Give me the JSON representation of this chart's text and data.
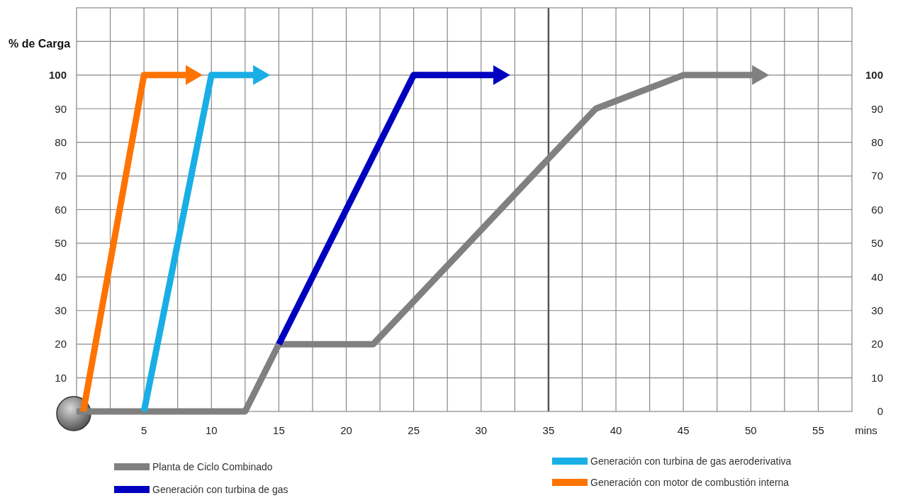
{
  "chart_data": {
    "type": "line",
    "xlabel": "mins",
    "ylabel": "% de Carga",
    "xlim": [
      0,
      57.5
    ],
    "ylim": [
      0,
      120
    ],
    "xticks": [
      {
        "value": 2.5,
        "label": null
      },
      5,
      {
        "value": 7.5,
        "label": null
      },
      10,
      {
        "value": 12.5,
        "label": null
      },
      15,
      {
        "value": 17.5,
        "label": null
      },
      20,
      {
        "value": 22.5,
        "label": null
      },
      25,
      {
        "value": 27.5,
        "label": null
      },
      30,
      {
        "value": 32.5,
        "label": null
      },
      35,
      {
        "value": 37.5,
        "label": null
      },
      40,
      {
        "value": 42.5,
        "label": null
      },
      45,
      {
        "value": 47.5,
        "label": null
      },
      50,
      {
        "value": 52.5,
        "label": null
      },
      55
    ],
    "yticks": [
      10,
      20,
      30,
      40,
      50,
      60,
      70,
      80,
      90,
      100,
      {
        "value": 110,
        "label": null
      }
    ],
    "y2lim": [
      0,
      120
    ],
    "y2ticks": [
      0,
      10,
      20,
      30,
      40,
      50,
      60,
      70,
      80,
      90,
      100
    ],
    "grid": true,
    "legend": "bottom",
    "marker": "none",
    "line_style": "solid",
    "ref_lines": [
      {
        "axis": "x",
        "value": 35,
        "color": "#555555"
      }
    ],
    "series": [
      {
        "name": "Planta de Ciclo Combinado",
        "color": "#808080",
        "x": [
          0,
          12.5,
          15,
          22,
          38.5,
          45,
          50.2
        ],
        "values": [
          0,
          0,
          20,
          20,
          90,
          100,
          100
        ]
      },
      {
        "name": "Generación con turbina de gas",
        "color": "#0000c0",
        "x": [
          15,
          25,
          31
        ],
        "values": [
          20,
          100,
          100
        ]
      },
      {
        "name": "Generación con turbina de gas aeroderivativa",
        "color": "#1aaee6",
        "x": [
          5,
          10,
          13.2
        ],
        "values": [
          0,
          100,
          100
        ]
      },
      {
        "name": "Generación con motor de combustión interna",
        "color": "#ff7300",
        "x": [
          0.5,
          5,
          8.2
        ],
        "values": [
          0,
          100,
          100
        ]
      }
    ]
  }
}
